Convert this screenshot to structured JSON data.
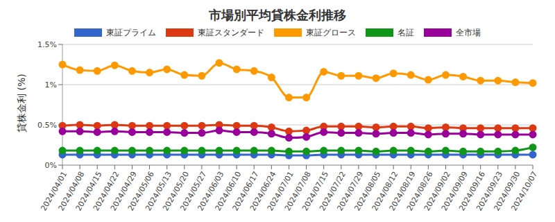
{
  "chart_data": {
    "type": "line",
    "title": "市場別平均貸株金利推移",
    "y_label": "貸株金利 (%)",
    "x": [
      "2024/04/01",
      "2024/04/08",
      "2024/04/15",
      "2024/04/22",
      "2024/04/29",
      "2024/05/06",
      "2024/05/13",
      "2024/05/20",
      "2024/05/27",
      "2024/06/03",
      "2024/06/10",
      "2024/06/17",
      "2024/06/24",
      "2024/07/01",
      "2024/07/08",
      "2024/07/15",
      "2024/07/22",
      "2024/07/29",
      "2024/08/05",
      "2024/08/12",
      "2024/08/19",
      "2024/08/26",
      "2024/09/02",
      "2024/09/09",
      "2024/09/16",
      "2024/09/23",
      "2024/09/30",
      "2024/10/07"
    ],
    "series": [
      {
        "name": "東証プライム",
        "color": "#3366cc",
        "values": [
          0.13,
          0.13,
          0.13,
          0.13,
          0.13,
          0.13,
          0.13,
          0.13,
          0.13,
          0.13,
          0.13,
          0.13,
          0.13,
          0.12,
          0.12,
          0.13,
          0.13,
          0.13,
          0.13,
          0.13,
          0.13,
          0.13,
          0.13,
          0.13,
          0.13,
          0.13,
          0.13,
          0.13
        ]
      },
      {
        "name": "東証スタンダード",
        "color": "#dc3912",
        "values": [
          0.49,
          0.5,
          0.49,
          0.5,
          0.49,
          0.49,
          0.49,
          0.49,
          0.49,
          0.5,
          0.49,
          0.49,
          0.47,
          0.42,
          0.43,
          0.48,
          0.48,
          0.48,
          0.47,
          0.48,
          0.48,
          0.46,
          0.47,
          0.46,
          0.46,
          0.46,
          0.46,
          0.46
        ]
      },
      {
        "name": "東証グロース",
        "color": "#ff9900",
        "values": [
          1.25,
          1.18,
          1.17,
          1.24,
          1.17,
          1.15,
          1.19,
          1.12,
          1.11,
          1.27,
          1.19,
          1.17,
          1.09,
          0.84,
          0.84,
          1.16,
          1.11,
          1.11,
          1.08,
          1.14,
          1.12,
          1.06,
          1.12,
          1.1,
          1.05,
          1.05,
          1.03,
          1.02
        ]
      },
      {
        "name": "名証",
        "color": "#109618",
        "values": [
          0.18,
          0.18,
          0.18,
          0.18,
          0.18,
          0.18,
          0.18,
          0.18,
          0.18,
          0.18,
          0.18,
          0.18,
          0.18,
          0.17,
          0.17,
          0.18,
          0.18,
          0.18,
          0.17,
          0.18,
          0.18,
          0.17,
          0.18,
          0.17,
          0.17,
          0.17,
          0.18,
          0.22
        ]
      },
      {
        "name": "全市場",
        "color": "#990099",
        "values": [
          0.42,
          0.42,
          0.41,
          0.42,
          0.41,
          0.41,
          0.41,
          0.4,
          0.4,
          0.43,
          0.41,
          0.41,
          0.39,
          0.34,
          0.35,
          0.41,
          0.4,
          0.4,
          0.39,
          0.4,
          0.4,
          0.38,
          0.39,
          0.39,
          0.38,
          0.38,
          0.38,
          0.38
        ]
      }
    ],
    "ylim": [
      0,
      1.5
    ],
    "yticks": [
      {
        "value": 0,
        "label": "0%"
      },
      {
        "value": 0.5,
        "label": "0.5%"
      },
      {
        "value": 1,
        "label": "1%"
      },
      {
        "value": 1.5,
        "label": "1.5%"
      }
    ],
    "grid": true,
    "legend": "top",
    "marker": "circle"
  }
}
